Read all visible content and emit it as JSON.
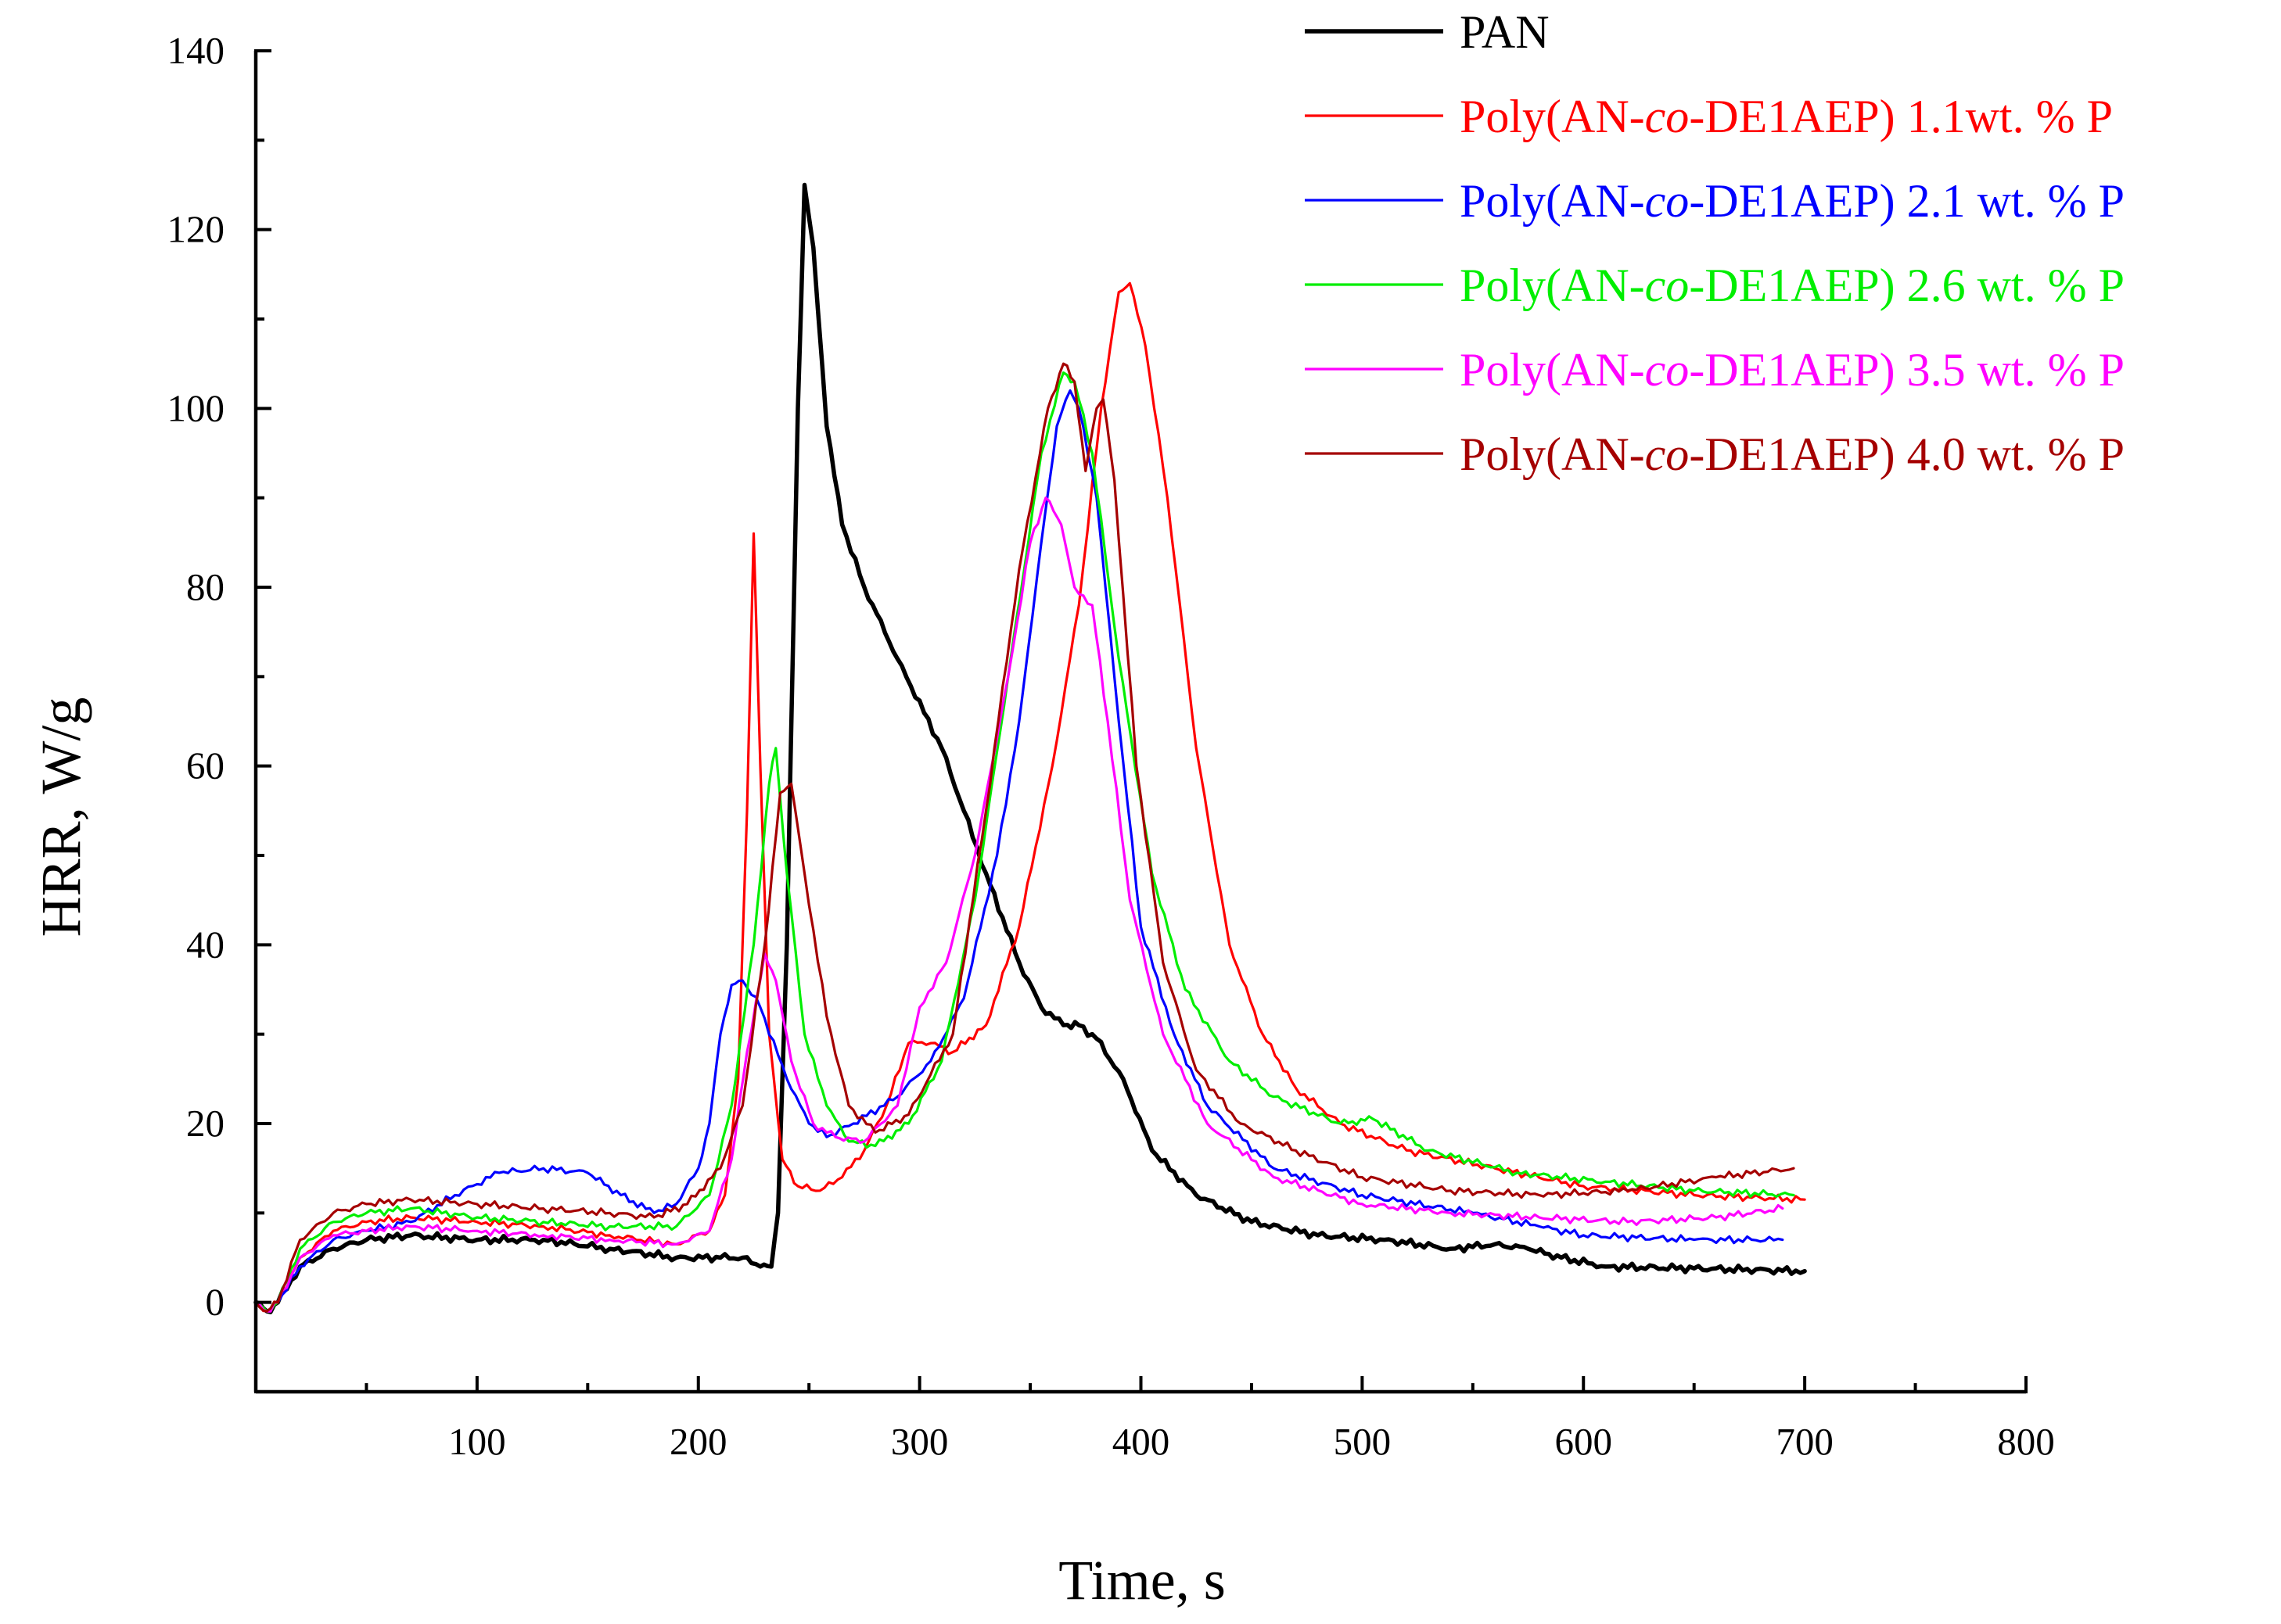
{
  "chart_data": {
    "type": "line",
    "title": "",
    "xlabel": "Time, s",
    "ylabel": "HRR, W/g",
    "xlim": [
      0,
      800
    ],
    "ylim": [
      -10,
      140
    ],
    "xticks": [
      100,
      200,
      300,
      400,
      500,
      600,
      700,
      800
    ],
    "xtick_labels": [
      "100",
      "200",
      "300",
      "400",
      "500",
      "600",
      "700",
      "800"
    ],
    "yticks": [
      0,
      20,
      40,
      60,
      80,
      100,
      120,
      140
    ],
    "ytick_labels": [
      "0",
      "20",
      "40",
      "60",
      "80",
      "100",
      "120",
      "140"
    ],
    "grid": false,
    "legend_position": "top-right",
    "series": [
      {
        "name": "PAN",
        "legend_parts": [
          "PAN"
        ],
        "color": "#000000",
        "points": [
          [
            0,
            0
          ],
          [
            5,
            -1
          ],
          [
            10,
            0
          ],
          [
            20,
            4
          ],
          [
            35,
            6
          ],
          [
            50,
            7
          ],
          [
            70,
            7.5
          ],
          [
            100,
            7
          ],
          [
            130,
            7
          ],
          [
            160,
            6
          ],
          [
            190,
            5
          ],
          [
            210,
            5
          ],
          [
            220,
            5
          ],
          [
            228,
            4
          ],
          [
            233,
            4
          ],
          [
            236,
            10
          ],
          [
            240,
            40
          ],
          [
            245,
            100
          ],
          [
            248,
            125
          ],
          [
            252,
            118
          ],
          [
            258,
            98
          ],
          [
            265,
            87
          ],
          [
            275,
            80
          ],
          [
            290,
            72
          ],
          [
            310,
            62
          ],
          [
            330,
            48
          ],
          [
            345,
            38
          ],
          [
            355,
            33
          ],
          [
            365,
            31
          ],
          [
            372,
            31
          ],
          [
            380,
            29.5
          ],
          [
            392,
            25
          ],
          [
            405,
            17
          ],
          [
            425,
            12
          ],
          [
            450,
            9
          ],
          [
            480,
            7.5
          ],
          [
            510,
            7
          ],
          [
            540,
            6
          ],
          [
            560,
            6.5
          ],
          [
            575,
            6
          ],
          [
            590,
            5
          ],
          [
            610,
            4
          ],
          [
            650,
            3.8
          ],
          [
            700,
            3.5
          ]
        ]
      },
      {
        "name": "Poly(AN-co-DE1AEP) 1.1wt. % P",
        "legend_parts": [
          "Poly(AN-",
          "co",
          "-DE1AEP) 1.1wt. % P"
        ],
        "color": "#ff0000",
        "points": [
          [
            0,
            0
          ],
          [
            5,
            -1
          ],
          [
            10,
            0
          ],
          [
            20,
            5
          ],
          [
            35,
            8
          ],
          [
            50,
            9
          ],
          [
            70,
            9.5
          ],
          [
            100,
            9
          ],
          [
            130,
            8.5
          ],
          [
            160,
            7.5
          ],
          [
            190,
            6.5
          ],
          [
            205,
            8
          ],
          [
            212,
            12
          ],
          [
            218,
            25
          ],
          [
            222,
            55
          ],
          [
            225,
            86
          ],
          [
            228,
            60
          ],
          [
            232,
            30
          ],
          [
            238,
            16
          ],
          [
            245,
            13
          ],
          [
            255,
            12.5
          ],
          [
            265,
            14
          ],
          [
            275,
            17
          ],
          [
            285,
            22
          ],
          [
            295,
            29
          ],
          [
            305,
            29
          ],
          [
            315,
            28
          ],
          [
            330,
            31
          ],
          [
            345,
            42
          ],
          [
            360,
            60
          ],
          [
            372,
            78
          ],
          [
            382,
            100
          ],
          [
            390,
            113
          ],
          [
            395,
            114
          ],
          [
            402,
            107
          ],
          [
            412,
            90
          ],
          [
            425,
            62
          ],
          [
            440,
            40
          ],
          [
            455,
            30
          ],
          [
            470,
            24
          ],
          [
            490,
            20
          ],
          [
            520,
            17
          ],
          [
            560,
            15
          ],
          [
            600,
            13
          ],
          [
            650,
            12
          ],
          [
            700,
            11.5
          ]
        ]
      },
      {
        "name": "Poly(AN-co-DE1AEP) 2.1 wt. % P",
        "legend_parts": [
          "Poly(AN-",
          "co",
          "-DE1AEP) 2.1 wt. % P"
        ],
        "color": "#0000ff",
        "points": [
          [
            0,
            0
          ],
          [
            5,
            -1
          ],
          [
            10,
            0
          ],
          [
            20,
            4
          ],
          [
            35,
            7
          ],
          [
            50,
            8
          ],
          [
            70,
            9
          ],
          [
            90,
            12
          ],
          [
            110,
            14.5
          ],
          [
            130,
            15
          ],
          [
            150,
            14.5
          ],
          [
            165,
            12
          ],
          [
            180,
            10
          ],
          [
            190,
            11
          ],
          [
            200,
            15
          ],
          [
            205,
            20
          ],
          [
            210,
            30
          ],
          [
            215,
            35.5
          ],
          [
            220,
            36
          ],
          [
            228,
            33
          ],
          [
            240,
            25
          ],
          [
            250,
            20
          ],
          [
            258,
            18.5
          ],
          [
            270,
            20
          ],
          [
            290,
            23
          ],
          [
            305,
            27
          ],
          [
            320,
            34
          ],
          [
            335,
            50
          ],
          [
            345,
            65
          ],
          [
            355,
            85
          ],
          [
            362,
            98
          ],
          [
            368,
            102
          ],
          [
            372,
            100
          ],
          [
            380,
            90
          ],
          [
            390,
            65
          ],
          [
            400,
            42
          ],
          [
            415,
            30
          ],
          [
            430,
            22
          ],
          [
            460,
            15
          ],
          [
            500,
            12
          ],
          [
            550,
            10
          ],
          [
            580,
            8.5
          ],
          [
            600,
            7.5
          ],
          [
            650,
            7
          ],
          [
            690,
            7
          ]
        ]
      },
      {
        "name": "Poly(AN-co-DE1AEP) 2.6 wt. % P",
        "legend_parts": [
          "Poly(AN-",
          "co",
          "-DE1AEP) 2.6 wt. % P"
        ],
        "color": "#00ee00",
        "points": [
          [
            0,
            0
          ],
          [
            5,
            -1
          ],
          [
            10,
            0
          ],
          [
            20,
            6
          ],
          [
            35,
            9
          ],
          [
            50,
            10
          ],
          [
            70,
            10.5
          ],
          [
            100,
            9.5
          ],
          [
            130,
            9
          ],
          [
            160,
            8.5
          ],
          [
            190,
            8.5
          ],
          [
            205,
            12
          ],
          [
            215,
            22
          ],
          [
            225,
            40
          ],
          [
            232,
            58
          ],
          [
            235,
            62
          ],
          [
            240,
            48
          ],
          [
            248,
            30
          ],
          [
            258,
            22
          ],
          [
            268,
            18
          ],
          [
            280,
            17.5
          ],
          [
            295,
            20
          ],
          [
            310,
            27
          ],
          [
            325,
            45
          ],
          [
            340,
            70
          ],
          [
            355,
            95
          ],
          [
            365,
            104
          ],
          [
            370,
            103
          ],
          [
            378,
            95
          ],
          [
            390,
            72
          ],
          [
            405,
            48
          ],
          [
            420,
            35
          ],
          [
            440,
            27
          ],
          [
            460,
            23
          ],
          [
            490,
            20
          ],
          [
            505,
            20.5
          ],
          [
            530,
            17
          ],
          [
            570,
            14.5
          ],
          [
            610,
            13.5
          ],
          [
            650,
            12.5
          ],
          [
            695,
            12
          ]
        ]
      },
      {
        "name": "Poly(AN-co-DE1AEP) 3.5 wt. % P",
        "legend_parts": [
          "Poly(AN-",
          "co",
          "-DE1AEP) 3.5 wt. % P"
        ],
        "color": "#ff00ff",
        "points": [
          [
            0,
            0
          ],
          [
            5,
            -1
          ],
          [
            10,
            0
          ],
          [
            20,
            5
          ],
          [
            35,
            7.5
          ],
          [
            50,
            8
          ],
          [
            70,
            8.5
          ],
          [
            100,
            8
          ],
          [
            130,
            7.5
          ],
          [
            160,
            7
          ],
          [
            190,
            6.5
          ],
          [
            205,
            8
          ],
          [
            215,
            16
          ],
          [
            222,
            28
          ],
          [
            230,
            39
          ],
          [
            235,
            36
          ],
          [
            242,
            27
          ],
          [
            252,
            20
          ],
          [
            262,
            18.5
          ],
          [
            275,
            18
          ],
          [
            290,
            22
          ],
          [
            300,
            33
          ],
          [
            312,
            38
          ],
          [
            325,
            50
          ],
          [
            340,
            70
          ],
          [
            350,
            85
          ],
          [
            357,
            90
          ],
          [
            364,
            87
          ],
          [
            370,
            80
          ],
          [
            378,
            78
          ],
          [
            385,
            65
          ],
          [
            395,
            45
          ],
          [
            410,
            30
          ],
          [
            430,
            20
          ],
          [
            460,
            14
          ],
          [
            500,
            11
          ],
          [
            540,
            10
          ],
          [
            580,
            9.5
          ],
          [
            620,
            9
          ],
          [
            660,
            9.5
          ],
          [
            690,
            10.5
          ]
        ]
      },
      {
        "name": "Poly(AN-co-DE1AEP) 4.0 wt. % P",
        "legend_parts": [
          "Poly(AN-",
          "co",
          "-DE1AEP) 4.0 wt. % P"
        ],
        "color": "#a50000",
        "points": [
          [
            0,
            0
          ],
          [
            5,
            -1
          ],
          [
            10,
            0
          ],
          [
            20,
            7
          ],
          [
            35,
            10
          ],
          [
            50,
            11
          ],
          [
            70,
            11.5
          ],
          [
            100,
            11
          ],
          [
            130,
            10.5
          ],
          [
            160,
            10
          ],
          [
            180,
            9.5
          ],
          [
            195,
            11
          ],
          [
            210,
            15
          ],
          [
            220,
            22
          ],
          [
            230,
            40
          ],
          [
            237,
            57
          ],
          [
            242,
            58
          ],
          [
            248,
            48
          ],
          [
            258,
            32
          ],
          [
            268,
            22
          ],
          [
            280,
            19
          ],
          [
            295,
            21
          ],
          [
            315,
            30
          ],
          [
            330,
            55
          ],
          [
            345,
            82
          ],
          [
            358,
            100
          ],
          [
            365,
            105
          ],
          [
            370,
            103
          ],
          [
            375,
            93
          ],
          [
            380,
            100
          ],
          [
            383,
            101
          ],
          [
            388,
            92
          ],
          [
            398,
            60
          ],
          [
            410,
            38
          ],
          [
            425,
            26
          ],
          [
            445,
            20
          ],
          [
            470,
            17
          ],
          [
            500,
            14
          ],
          [
            540,
            12.5
          ],
          [
            580,
            12
          ],
          [
            620,
            12.5
          ],
          [
            660,
            14
          ],
          [
            695,
            15
          ]
        ]
      }
    ]
  }
}
